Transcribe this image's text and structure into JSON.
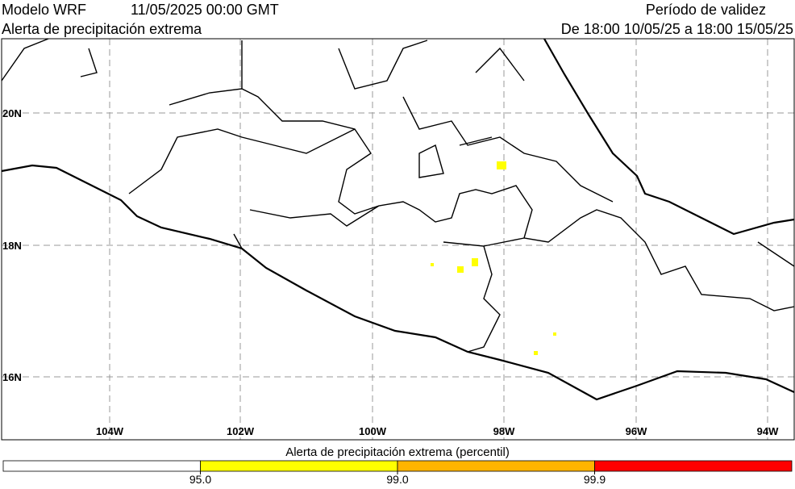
{
  "header": {
    "model": "Modelo WRF",
    "run": "11/05/2025 00:00 GMT",
    "title": "Alerta de precipitación extrema",
    "validity_title": "Período de validez",
    "validity": "De 18:00 10/05/25 a 18:00 15/05/25"
  },
  "map": {
    "lat_labels": [
      "20N",
      "18N",
      "16N"
    ],
    "lon_labels": [
      "104W",
      "102W",
      "100W",
      "98W",
      "96W",
      "94W"
    ]
  },
  "colorbar": {
    "title": "Alerta de precipitación extrema (percentil)",
    "colors": [
      "#ffffff",
      "#ffff00",
      "#ffb400",
      "#ff0000"
    ],
    "ticks": [
      {
        "value": 95,
        "label": "95.0"
      },
      {
        "value": 99,
        "label": "99.0"
      },
      {
        "value": 99.9,
        "label": "99.9"
      }
    ]
  }
}
